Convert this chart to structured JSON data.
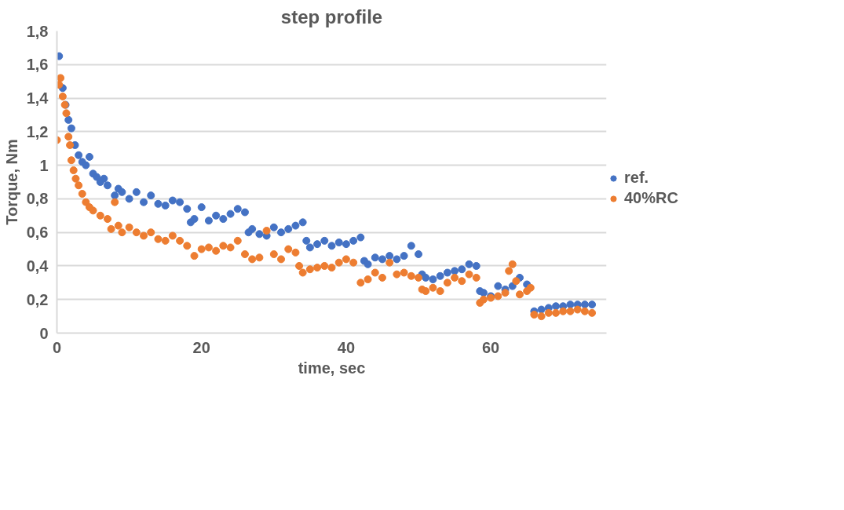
{
  "chart_data": {
    "type": "scatter",
    "title": "step profile",
    "xlabel": "time, sec",
    "ylabel": "Torque, Nm",
    "xlim": [
      0,
      76
    ],
    "xticks": [
      0,
      20,
      40,
      60
    ],
    "ylim": [
      0,
      1.8
    ],
    "yticks": [
      0,
      {
        "value": 0.2,
        "label": "0,2"
      },
      {
        "value": 0.4,
        "label": "0,4"
      },
      {
        "value": 0.6,
        "label": "0,6"
      },
      {
        "value": 0.8,
        "label": "0,8"
      },
      1,
      {
        "value": 1.2,
        "label": "1,2"
      },
      {
        "value": 1.4,
        "label": "1,4"
      },
      {
        "value": 1.6,
        "label": "1,6"
      },
      {
        "value": 1.8,
        "label": "1,8"
      }
    ],
    "grid": "y",
    "legend": "right",
    "marker": "circle",
    "series": [
      {
        "name": "ref.",
        "color": "#4472c4",
        "x": [
          0.3,
          0.8,
          1.2,
          1.6,
          2,
          2.5,
          3,
          3.5,
          4,
          4.5,
          5,
          5.5,
          6,
          6.5,
          7,
          8,
          8.5,
          9,
          10,
          11,
          12,
          13,
          14,
          15,
          16,
          17,
          18,
          18.5,
          19,
          20,
          21,
          22,
          23,
          24,
          25,
          26,
          26.5,
          27,
          28,
          29,
          30,
          31,
          32,
          33,
          34,
          34.5,
          35,
          36,
          37,
          38,
          39,
          40,
          41,
          42,
          42.5,
          43,
          44,
          45,
          46,
          47,
          48,
          49,
          50,
          50.5,
          51,
          52,
          53,
          54,
          55,
          56,
          57,
          58,
          58.5,
          59,
          60,
          61,
          62,
          63,
          64,
          65,
          66,
          67,
          68,
          69,
          70,
          71,
          72,
          73,
          74
        ],
        "values": [
          1.65,
          1.46,
          1.36,
          1.27,
          1.22,
          1.12,
          1.06,
          1.02,
          1.0,
          1.05,
          0.95,
          0.93,
          0.9,
          0.92,
          0.88,
          0.82,
          0.86,
          0.84,
          0.8,
          0.84,
          0.78,
          0.82,
          0.77,
          0.76,
          0.79,
          0.78,
          0.74,
          0.66,
          0.68,
          0.75,
          0.67,
          0.7,
          0.68,
          0.71,
          0.74,
          0.72,
          0.6,
          0.62,
          0.59,
          0.58,
          0.63,
          0.6,
          0.62,
          0.64,
          0.66,
          0.55,
          0.51,
          0.53,
          0.55,
          0.52,
          0.54,
          0.53,
          0.55,
          0.57,
          0.43,
          0.41,
          0.45,
          0.44,
          0.46,
          0.44,
          0.46,
          0.52,
          0.47,
          0.35,
          0.33,
          0.32,
          0.34,
          0.36,
          0.37,
          0.38,
          0.41,
          0.4,
          0.25,
          0.24,
          0.22,
          0.28,
          0.26,
          0.28,
          0.33,
          0.29,
          0.13,
          0.14,
          0.15,
          0.16,
          0.16,
          0.17,
          0.17,
          0.17,
          0.17
        ]
      },
      {
        "name": "40%RC",
        "color": "#ed7d31",
        "x": [
          0,
          0.3,
          0.5,
          0.8,
          1.1,
          1.3,
          1.6,
          1.8,
          2,
          2.3,
          2.6,
          3,
          3.5,
          4,
          4.5,
          5,
          6,
          7,
          7.5,
          8,
          8.5,
          9,
          10,
          11,
          12,
          13,
          14,
          15,
          16,
          17,
          18,
          19,
          20,
          21,
          22,
          23,
          24,
          25,
          26,
          27,
          28,
          29,
          30,
          31,
          32,
          33,
          33.5,
          34,
          35,
          36,
          37,
          38,
          39,
          40,
          41,
          42,
          43,
          44,
          45,
          46,
          47,
          48,
          49,
          50,
          50.5,
          51,
          52,
          53,
          54,
          55,
          56,
          57,
          58,
          58.5,
          59,
          60,
          61,
          62,
          62.5,
          63,
          63.5,
          64,
          65,
          65.5,
          66,
          67,
          68,
          69,
          70,
          71,
          72,
          73,
          74
        ],
        "values": [
          1.15,
          1.48,
          1.52,
          1.41,
          1.36,
          1.31,
          1.17,
          1.12,
          1.03,
          0.97,
          0.92,
          0.88,
          0.83,
          0.78,
          0.75,
          0.73,
          0.7,
          0.68,
          0.62,
          0.78,
          0.64,
          0.6,
          0.63,
          0.6,
          0.58,
          0.6,
          0.56,
          0.55,
          0.58,
          0.55,
          0.52,
          0.46,
          0.5,
          0.51,
          0.49,
          0.52,
          0.51,
          0.55,
          0.47,
          0.44,
          0.45,
          0.61,
          0.47,
          0.44,
          0.5,
          0.48,
          0.4,
          0.36,
          0.38,
          0.39,
          0.4,
          0.39,
          0.42,
          0.44,
          0.42,
          0.3,
          0.32,
          0.36,
          0.33,
          0.42,
          0.35,
          0.36,
          0.34,
          0.33,
          0.26,
          0.25,
          0.27,
          0.25,
          0.3,
          0.33,
          0.31,
          0.35,
          0.33,
          0.18,
          0.2,
          0.21,
          0.22,
          0.24,
          0.37,
          0.41,
          0.31,
          0.23,
          0.25,
          0.27,
          0.11,
          0.1,
          0.12,
          0.12,
          0.13,
          0.13,
          0.14,
          0.13,
          0.12
        ]
      }
    ]
  }
}
